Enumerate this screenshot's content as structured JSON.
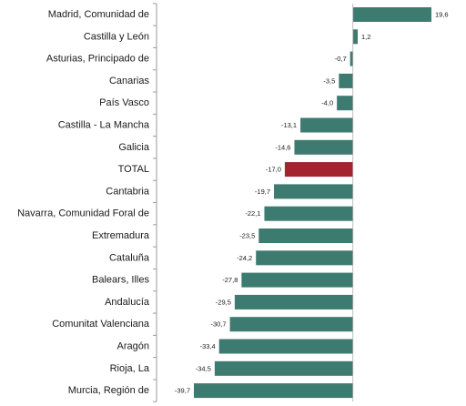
{
  "chart_data": {
    "type": "bar",
    "orientation": "horizontal",
    "categories": [
      "Madrid, Comunidad de",
      "Castilla y León",
      "Asturias, Principado de",
      "Canarias",
      "País Vasco",
      "Castilla - La Mancha",
      "Galicia",
      "TOTAL",
      "Cantabria",
      "Navarra, Comunidad Foral de",
      "Extremadura",
      "Cataluña",
      "Balears, Illes",
      "Andalucía",
      "Comunitat Valenciana",
      "Aragón",
      "Rioja, La",
      "Murcia, Región de"
    ],
    "values": [
      19.6,
      1.2,
      -0.7,
      -3.5,
      -4.0,
      -13.1,
      -14.6,
      -17.0,
      -19.7,
      -22.1,
      -23.5,
      -24.2,
      -27.8,
      -29.5,
      -30.7,
      -33.4,
      -34.5,
      -39.7
    ],
    "value_labels": [
      "19,6",
      "1,2",
      "-0,7",
      "-3,5",
      "-4,0",
      "-13,1",
      "-14,6",
      "-17,0",
      "-19,7",
      "-22,1",
      "-23,5",
      "-24,2",
      "-27,8",
      "-29,5",
      "-30,7",
      "-33,4",
      "-34,5",
      "-39,7"
    ],
    "highlight_category": "TOTAL",
    "xlim": [
      -39.7,
      19.6
    ],
    "grid": false,
    "colors": {
      "bar": "#3d7a6f",
      "highlight": "#a3232e",
      "axis": "#9a9a9a"
    }
  }
}
